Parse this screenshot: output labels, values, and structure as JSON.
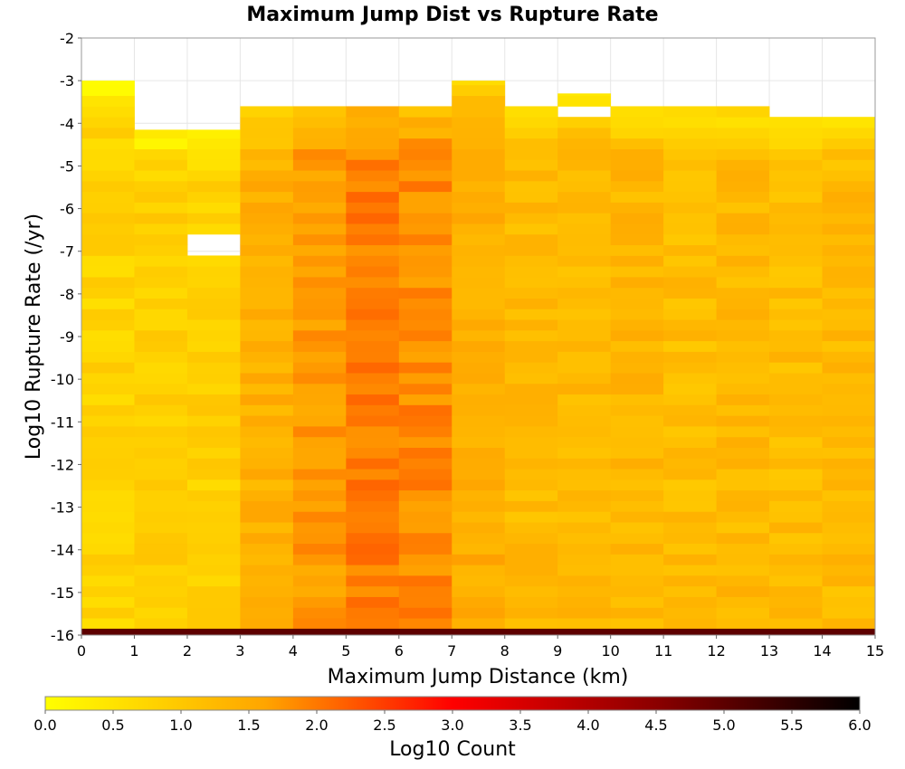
{
  "chart_data": {
    "type": "heatmap",
    "title": "Maximum Jump Dist vs Rupture Rate",
    "xlabel": "Maximum Jump Distance (km)",
    "ylabel": "Log10 Rupture Rate (/yr)",
    "xlim": [
      0,
      15
    ],
    "ylim": [
      -16,
      -2
    ],
    "x_ticks": [
      "0",
      "1",
      "2",
      "3",
      "4",
      "5",
      "6",
      "7",
      "8",
      "9",
      "10",
      "11",
      "12",
      "13",
      "14",
      "15"
    ],
    "y_ticks": [
      "-2",
      "-3",
      "-4",
      "-5",
      "-6",
      "-7",
      "-8",
      "-9",
      "-10",
      "-11",
      "-12",
      "-13",
      "-14",
      "-15",
      "-16"
    ],
    "x_bins": [
      0,
      1,
      2,
      3,
      4,
      5,
      6,
      7,
      8,
      9,
      10,
      11,
      12,
      13,
      14
    ],
    "y_bin_width": 0.25,
    "grid": true,
    "columns": [
      {
        "x_bin": 0,
        "y_top": -3.0,
        "base": 0.8
      },
      {
        "x_bin": 1,
        "y_top": -4.15,
        "base": 0.9
      },
      {
        "x_bin": 2,
        "y_top": -4.15,
        "base": 0.85
      },
      {
        "x_bin": 3,
        "y_top": -3.6,
        "base": 1.4
      },
      {
        "x_bin": 4,
        "y_top": -3.6,
        "base": 1.7
      },
      {
        "x_bin": 5,
        "y_top": -3.6,
        "base": 1.95
      },
      {
        "x_bin": 6,
        "y_top": -3.6,
        "base": 1.85
      },
      {
        "x_bin": 7,
        "y_top": -3.0,
        "base": 1.45
      },
      {
        "x_bin": 8,
        "y_top": -3.6,
        "base": 1.25
      },
      {
        "x_bin": 9,
        "y_top": -3.3,
        "base": 1.25
      },
      {
        "x_bin": 10,
        "y_top": -3.6,
        "base": 1.3
      },
      {
        "x_bin": 11,
        "y_top": -3.6,
        "base": 1.2
      },
      {
        "x_bin": 12,
        "y_top": -3.6,
        "base": 1.25
      },
      {
        "x_bin": 13,
        "y_top": -3.85,
        "base": 1.2
      },
      {
        "x_bin": 14,
        "y_top": -3.85,
        "base": 1.25
      }
    ],
    "gaps": [
      {
        "x_bin": 2,
        "y_from": -7.0,
        "y_to": -6.75
      },
      {
        "x_bin": 9,
        "y_from": -3.85,
        "y_to": -3.6
      }
    ],
    "bottom_row": {
      "y_from": -16.0,
      "y_to": -15.85,
      "value": 5.0
    },
    "colorbar": {
      "label": "Log10 Count",
      "min": 0.0,
      "max": 6.0,
      "ticks": [
        "0.0",
        "0.5",
        "1.0",
        "1.5",
        "2.0",
        "2.5",
        "3.0",
        "3.5",
        "4.0",
        "4.5",
        "5.0",
        "5.5",
        "6.0"
      ],
      "colors": [
        "#ffff00",
        "#ffa500",
        "#ff0000",
        "#000000"
      ]
    }
  }
}
